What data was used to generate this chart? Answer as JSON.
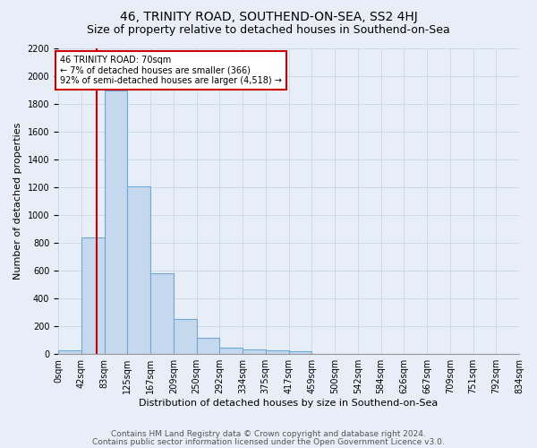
{
  "title": "46, TRINITY ROAD, SOUTHEND-ON-SEA, SS2 4HJ",
  "subtitle": "Size of property relative to detached houses in Southend-on-Sea",
  "xlabel": "Distribution of detached houses by size in Southend-on-Sea",
  "ylabel": "Number of detached properties",
  "footnote1": "Contains HM Land Registry data © Crown copyright and database right 2024.",
  "footnote2": "Contains public sector information licensed under the Open Government Licence v3.0.",
  "bin_labels": [
    "0sqm",
    "42sqm",
    "83sqm",
    "125sqm",
    "167sqm",
    "209sqm",
    "250sqm",
    "292sqm",
    "334sqm",
    "375sqm",
    "417sqm",
    "459sqm",
    "500sqm",
    "542sqm",
    "584sqm",
    "626sqm",
    "667sqm",
    "709sqm",
    "751sqm",
    "792sqm",
    "834sqm"
  ],
  "bar_values": [
    25,
    840,
    1900,
    1210,
    580,
    255,
    120,
    45,
    35,
    28,
    18,
    0,
    0,
    0,
    0,
    0,
    0,
    0,
    0,
    0
  ],
  "bar_color": "#c5d8ee",
  "bar_edge_color": "#6aaad4",
  "ylim": [
    0,
    2200
  ],
  "yticks": [
    0,
    200,
    400,
    600,
    800,
    1000,
    1200,
    1400,
    1600,
    1800,
    2000,
    2200
  ],
  "property_line_color": "#cc0000",
  "annotation_text": "46 TRINITY ROAD: 70sqm\n← 7% of detached houses are smaller (366)\n92% of semi-detached houses are larger (4,518) →",
  "annotation_box_color": "#ffffff",
  "annotation_box_edge": "#cc0000",
  "bg_color": "#e8eef7",
  "grid_color": "#c8d0dc",
  "title_fontsize": 10,
  "subtitle_fontsize": 9,
  "axis_label_fontsize": 8,
  "tick_fontsize": 7,
  "annotation_fontsize": 7,
  "footnote_fontsize": 6.5
}
